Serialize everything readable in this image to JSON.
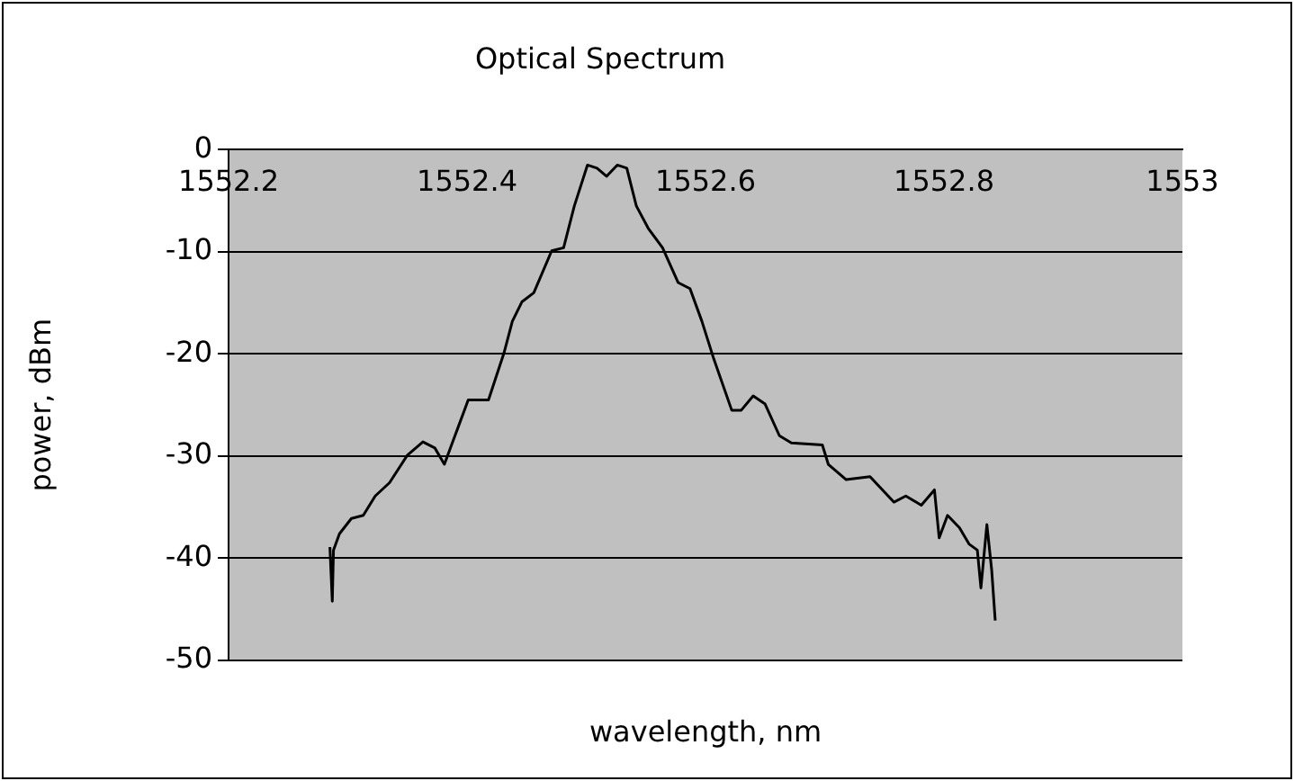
{
  "chart_data": {
    "type": "line",
    "title": "Optical Spectrum",
    "xlabel": "wavelength, nm",
    "ylabel": "power, dBm",
    "xlim": [
      1552.2,
      1553
    ],
    "xticks": [
      1552.2,
      1552.4,
      1552.6,
      1552.8,
      1553
    ],
    "ylim": [
      -50,
      0
    ],
    "yticks": [
      -50,
      -40,
      -30,
      -20,
      -10,
      0
    ],
    "grid": "y",
    "legend": false,
    "marker": "none",
    "line_style": "solid",
    "series": [
      {
        "color": "#000000",
        "x": [
          1552.285,
          1552.287,
          1552.288,
          1552.293,
          1552.303,
          1552.313,
          1552.323,
          1552.335,
          1552.35,
          1552.363,
          1552.373,
          1552.381,
          1552.388,
          1552.401,
          1552.418,
          1552.431,
          1552.438,
          1552.446,
          1552.456,
          1552.471,
          1552.481,
          1552.49,
          1552.501,
          1552.509,
          1552.517,
          1552.526,
          1552.534,
          1552.542,
          1552.552,
          1552.564,
          1552.577,
          1552.587,
          1552.597,
          1552.607,
          1552.622,
          1552.63,
          1552.64,
          1552.65,
          1552.662,
          1552.672,
          1552.698,
          1552.703,
          1552.718,
          1552.738,
          1552.758,
          1552.768,
          1552.781,
          1552.792,
          1552.796,
          1552.803,
          1552.813,
          1552.821,
          1552.828,
          1552.831,
          1552.836,
          1552.84,
          1552.843
        ],
        "values": [
          -38.9,
          -44.2,
          -39.2,
          -37.6,
          -36.1,
          -35.8,
          -33.9,
          -32.6,
          -29.9,
          -28.6,
          -29.2,
          -30.8,
          -28.6,
          -24.5,
          -24.5,
          -19.9,
          -16.8,
          -14.9,
          -14,
          -9.9,
          -9.6,
          -5.5,
          -1.5,
          -1.8,
          -2.6,
          -1.5,
          -1.8,
          -5.5,
          -7.7,
          -9.6,
          -13,
          -13.6,
          -16.8,
          -20.5,
          -25.5,
          -25.5,
          -24.1,
          -24.9,
          -28,
          -28.7,
          -28.9,
          -30.8,
          -32.3,
          -32,
          -34.5,
          -33.9,
          -34.8,
          -33.3,
          -38,
          -35.8,
          -37,
          -38.6,
          -39.2,
          -42.9,
          -36.7,
          -41.1,
          -46.1
        ]
      }
    ]
  }
}
